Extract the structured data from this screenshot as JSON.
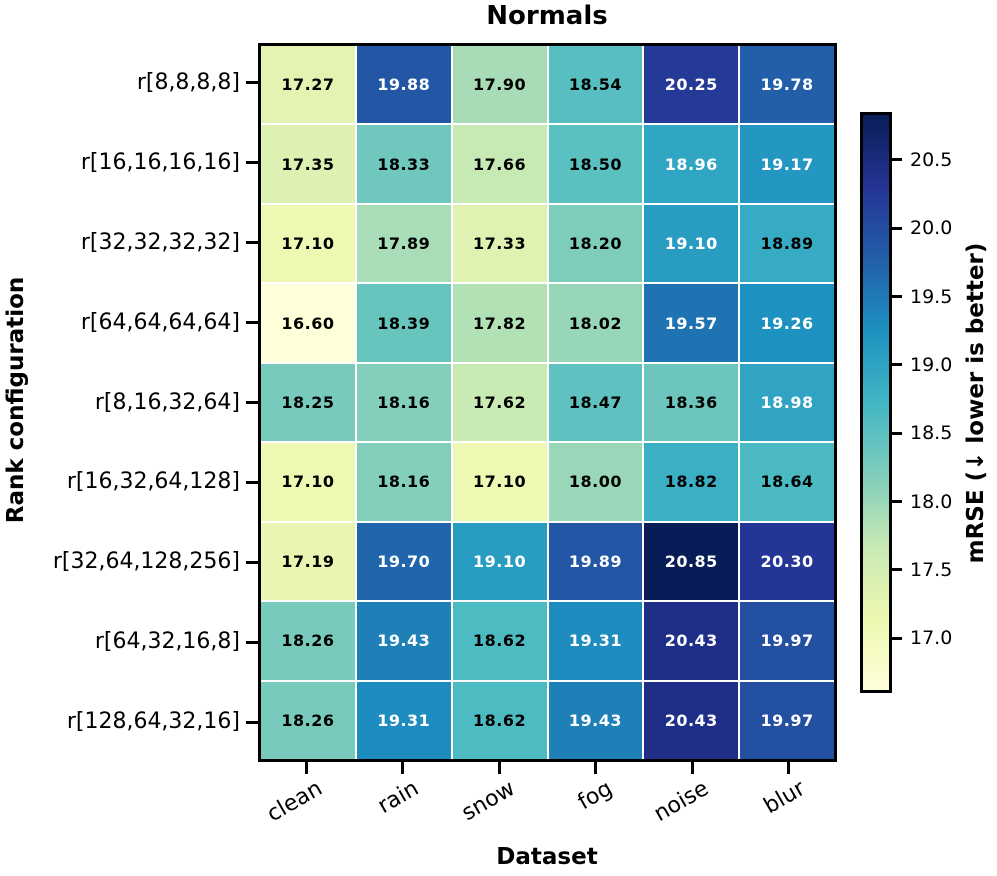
{
  "chart_data": {
    "type": "heatmap",
    "title": "Normals",
    "xlabel": "Dataset",
    "ylabel": "Rank configuration",
    "x_categories": [
      "clean",
      "rain",
      "snow",
      "fog",
      "noise",
      "blur"
    ],
    "y_categories": [
      "r[8,8,8,8]",
      "r[16,16,16,16]",
      "r[32,32,32,32]",
      "r[64,64,64,64]",
      "r[8,16,32,64]",
      "r[16,32,64,128]",
      "r[32,64,128,256]",
      "r[64,32,16,8]",
      "r[128,64,32,16]"
    ],
    "values": [
      [
        17.27,
        19.88,
        17.9,
        18.54,
        20.25,
        19.78
      ],
      [
        17.35,
        18.33,
        17.66,
        18.5,
        18.96,
        19.17
      ],
      [
        17.1,
        17.89,
        17.33,
        18.2,
        19.1,
        18.89
      ],
      [
        16.6,
        18.39,
        17.82,
        18.02,
        19.57,
        19.26
      ],
      [
        18.25,
        18.16,
        17.62,
        18.47,
        18.36,
        18.98
      ],
      [
        17.1,
        18.16,
        17.1,
        18.0,
        18.82,
        18.64
      ],
      [
        17.19,
        19.7,
        19.1,
        19.89,
        20.85,
        20.3
      ],
      [
        18.26,
        19.43,
        18.62,
        19.31,
        20.43,
        19.97
      ],
      [
        18.26,
        19.31,
        18.62,
        19.43,
        20.43,
        19.97
      ]
    ],
    "value_format_decimals": 2,
    "vmin": 16.6,
    "vmax": 20.85,
    "colorbar": {
      "label": "mRSE (↓ lower is better)",
      "tick_labels": [
        "17.0",
        "17.5",
        "18.0",
        "18.5",
        "19.0",
        "19.5",
        "20.0",
        "20.5"
      ],
      "tick_values": [
        17.0,
        17.5,
        18.0,
        18.5,
        19.0,
        19.5,
        20.0,
        20.5
      ]
    },
    "colormap": {
      "name": "YlGnBu",
      "stops": [
        "#ffffd9",
        "#edf8b1",
        "#c7e9b4",
        "#7fcdbb",
        "#41b6c4",
        "#1d91c0",
        "#225ea8",
        "#253494",
        "#081d58"
      ]
    },
    "cell_text_colors": {
      "dark": "#000000",
      "light": "#ffffff",
      "light_threshold": 18.92
    },
    "axes_color": "#000000",
    "grid_line_color": "#ffffff",
    "legend_position": "right-colorbar",
    "grid": false
  }
}
